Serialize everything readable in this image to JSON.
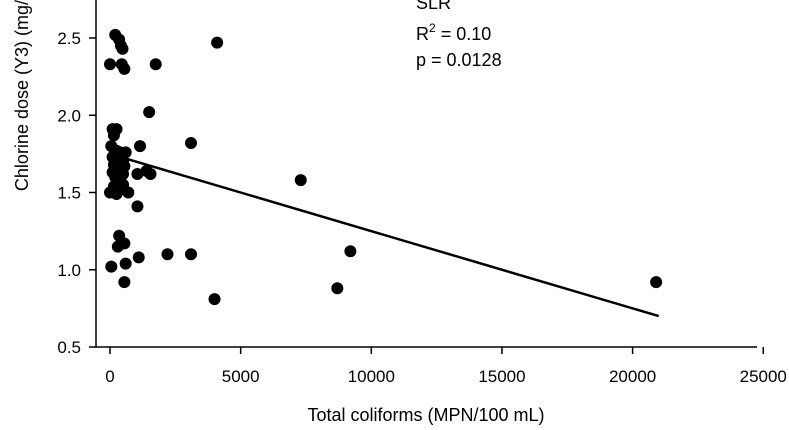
{
  "chart_data": {
    "type": "scatter",
    "xlabel": "Total coliforms (MPN/100 mL)",
    "ylabel": "Chlorine dose (Y3) (mg/",
    "xlim": [
      -500,
      25000
    ],
    "ylim": [
      0.5,
      2.7
    ],
    "x_ticks": [
      0,
      5000,
      10000,
      15000,
      20000,
      25000
    ],
    "y_ticks": [
      0.5,
      1.0,
      1.5,
      2.0,
      2.5
    ],
    "x_tick_labels": [
      "0",
      "5000",
      "10000",
      "15000",
      "20000",
      "25000"
    ],
    "y_tick_labels": [
      "0.5",
      "1.0",
      "1.5",
      "2.0",
      "2.5"
    ],
    "annotations": {
      "top_cut": "SLR",
      "r2_prefix": "R",
      "r2_sup": "2",
      "r2_value": " = 0.10",
      "p_value": "p = 0.0128"
    },
    "regression_line": {
      "x": [
        0,
        21000
      ],
      "y": [
        1.75,
        0.7
      ]
    },
    "grid": false,
    "points": [
      {
        "x": 200,
        "y": 2.52
      },
      {
        "x": 350,
        "y": 2.49
      },
      {
        "x": 420,
        "y": 2.45
      },
      {
        "x": 480,
        "y": 2.43
      },
      {
        "x": 0,
        "y": 2.33
      },
      {
        "x": 450,
        "y": 2.33
      },
      {
        "x": 550,
        "y": 2.3
      },
      {
        "x": 1750,
        "y": 2.33
      },
      {
        "x": 4100,
        "y": 2.47
      },
      {
        "x": 1500,
        "y": 2.02
      },
      {
        "x": 100,
        "y": 1.91
      },
      {
        "x": 250,
        "y": 1.91
      },
      {
        "x": 150,
        "y": 1.87
      },
      {
        "x": 3100,
        "y": 1.82
      },
      {
        "x": 1150,
        "y": 1.8
      },
      {
        "x": 50,
        "y": 1.8
      },
      {
        "x": 250,
        "y": 1.77
      },
      {
        "x": 400,
        "y": 1.76
      },
      {
        "x": 600,
        "y": 1.76
      },
      {
        "x": 100,
        "y": 1.73
      },
      {
        "x": 300,
        "y": 1.72
      },
      {
        "x": 500,
        "y": 1.7
      },
      {
        "x": 150,
        "y": 1.68
      },
      {
        "x": 350,
        "y": 1.67
      },
      {
        "x": 550,
        "y": 1.67
      },
      {
        "x": 200,
        "y": 1.65
      },
      {
        "x": 450,
        "y": 1.65
      },
      {
        "x": 100,
        "y": 1.63
      },
      {
        "x": 300,
        "y": 1.62
      },
      {
        "x": 500,
        "y": 1.62
      },
      {
        "x": 1050,
        "y": 1.62
      },
      {
        "x": 1400,
        "y": 1.64
      },
      {
        "x": 1550,
        "y": 1.62
      },
      {
        "x": 200,
        "y": 1.6
      },
      {
        "x": 400,
        "y": 1.58
      },
      {
        "x": 7300,
        "y": 1.58
      },
      {
        "x": 300,
        "y": 1.56
      },
      {
        "x": 500,
        "y": 1.55
      },
      {
        "x": 150,
        "y": 1.54
      },
      {
        "x": 450,
        "y": 1.52
      },
      {
        "x": 0,
        "y": 1.5
      },
      {
        "x": 250,
        "y": 1.49
      },
      {
        "x": 700,
        "y": 1.5
      },
      {
        "x": 1050,
        "y": 1.41
      },
      {
        "x": 350,
        "y": 1.22
      },
      {
        "x": 550,
        "y": 1.17
      },
      {
        "x": 300,
        "y": 1.15
      },
      {
        "x": 2200,
        "y": 1.1
      },
      {
        "x": 3100,
        "y": 1.1
      },
      {
        "x": 1100,
        "y": 1.08
      },
      {
        "x": 9200,
        "y": 1.12
      },
      {
        "x": 50,
        "y": 1.02
      },
      {
        "x": 600,
        "y": 1.04
      },
      {
        "x": 550,
        "y": 0.92
      },
      {
        "x": 4000,
        "y": 0.81
      },
      {
        "x": 8700,
        "y": 0.88
      },
      {
        "x": 20900,
        "y": 0.92
      }
    ]
  }
}
